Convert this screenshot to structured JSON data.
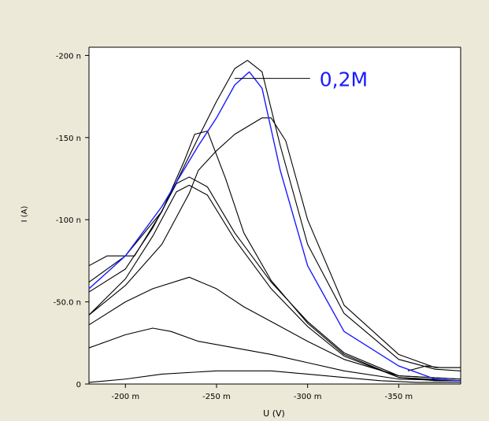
{
  "colors": {
    "background": "#ece9d8",
    "plot_background": "#ffffff",
    "axis": "#000000",
    "curve": "#000000",
    "highlight": "#1a1aff"
  },
  "chart_data": {
    "type": "line",
    "title": "",
    "xlabel": "U (V)",
    "ylabel": "I (A)",
    "xlim": [
      -0.18,
      -0.384
    ],
    "ylim": [
      -0.0,
      -2.05e-07
    ],
    "grid": false,
    "legend": "none",
    "x_ticks": [
      -0.2,
      -0.25,
      -0.3,
      -0.35
    ],
    "x_tick_labels": [
      "-200 m",
      "-250 m",
      "-300 m",
      "-350 m"
    ],
    "y_ticks": [
      0,
      -5e-08,
      -1e-07,
      -1.5e-07,
      -2e-07
    ],
    "y_tick_labels": [
      "0",
      "-50.0 n",
      "-100 n",
      "-150 n",
      "-200 n"
    ],
    "annotation": {
      "text": "0,2M",
      "target_series": "0,2M",
      "target_point": [
        -0.259,
        -1.87e-07
      ]
    },
    "series": [
      {
        "name": "0,2M",
        "x": [
          -0.18,
          -0.2,
          -0.22,
          -0.24,
          -0.25,
          -0.26,
          -0.268,
          -0.275,
          -0.285,
          -0.3,
          -0.32,
          -0.35,
          -0.37,
          -0.384
        ],
        "y": [
          -5.8e-08,
          -7.8e-08,
          -1.08e-07,
          -1.45e-07,
          -1.62e-07,
          -1.82e-07,
          -1.9e-07,
          -1.8e-07,
          -1.3e-07,
          -7.2e-08,
          -3.2e-08,
          -1.1e-08,
          -3e-09,
          -2e-09
        ]
      },
      {
        "x": [
          -0.18,
          -0.2,
          -0.22,
          -0.24,
          -0.25,
          -0.26,
          -0.267,
          -0.275,
          -0.285,
          -0.3,
          -0.32,
          -0.35,
          -0.37,
          -0.384
        ],
        "y": [
          -6.2e-08,
          -7.8e-08,
          -1.05e-07,
          -1.5e-07,
          -1.72e-07,
          -1.92e-07,
          -1.97e-07,
          -1.9e-07,
          -1.45e-07,
          -8.5e-08,
          -4.3e-08,
          -1.5e-08,
          -9e-09,
          -8e-09
        ]
      },
      {
        "x": [
          -0.18,
          -0.2,
          -0.22,
          -0.235,
          -0.24,
          -0.25,
          -0.26,
          -0.275,
          -0.28,
          -0.288,
          -0.3,
          -0.32,
          -0.35,
          -0.37,
          -0.384
        ],
        "y": [
          -4.2e-08,
          -6e-08,
          -8.5e-08,
          -1.16e-07,
          -1.3e-07,
          -1.42e-07,
          -1.52e-07,
          -1.62e-07,
          -1.62e-07,
          -1.48e-07,
          -1e-07,
          -4.8e-08,
          -1.8e-08,
          -1e-08,
          -1e-08
        ]
      },
      {
        "x": [
          -0.18,
          -0.19,
          -0.205,
          -0.22,
          -0.232,
          -0.238,
          -0.245,
          -0.255,
          -0.265,
          -0.28,
          -0.3,
          -0.32,
          -0.35,
          -0.37,
          -0.384
        ],
        "y": [
          -7.2e-08,
          -7.8e-08,
          -7.8e-08,
          -1.05e-07,
          -1.35e-07,
          -1.52e-07,
          -1.54e-07,
          -1.25e-07,
          -9.2e-08,
          -6.3e-08,
          -3.7e-08,
          -1.8e-08,
          -4e-09,
          -2e-09,
          -2e-09
        ]
      },
      {
        "x": [
          -0.18,
          -0.2,
          -0.215,
          -0.228,
          -0.235,
          -0.245,
          -0.26,
          -0.28,
          -0.3,
          -0.32,
          -0.35,
          -0.384
        ],
        "y": [
          -5.6e-08,
          -7e-08,
          -9.5e-08,
          -1.22e-07,
          -1.26e-07,
          -1.2e-07,
          -9.2e-08,
          -6.2e-08,
          -3.8e-08,
          -1.9e-08,
          -5e-09,
          -3e-09
        ]
      },
      {
        "x": [
          -0.18,
          -0.2,
          -0.215,
          -0.228,
          -0.235,
          -0.245,
          -0.26,
          -0.28,
          -0.3,
          -0.32,
          -0.35,
          -0.384
        ],
        "y": [
          -4.2e-08,
          -6.4e-08,
          -9e-08,
          -1.17e-07,
          -1.21e-07,
          -1.15e-07,
          -8.8e-08,
          -5.8e-08,
          -3.5e-08,
          -1.7e-08,
          -4e-09,
          -2e-09
        ]
      },
      {
        "x": [
          -0.18,
          -0.2,
          -0.215,
          -0.235,
          -0.25,
          -0.265,
          -0.28,
          -0.3,
          -0.32,
          -0.35,
          -0.384
        ],
        "y": [
          -3.6e-08,
          -5e-08,
          -5.8e-08,
          -6.5e-08,
          -5.8e-08,
          -4.7e-08,
          -3.8e-08,
          -2.6e-08,
          -1.5e-08,
          -5e-09,
          -3e-09
        ]
      },
      {
        "x": [
          -0.18,
          -0.19,
          -0.2,
          -0.215,
          -0.225,
          -0.24,
          -0.26,
          -0.28,
          -0.3,
          -0.32,
          -0.35,
          -0.384
        ],
        "y": [
          -2.2e-08,
          -2.6e-08,
          -3e-08,
          -3.4e-08,
          -3.2e-08,
          -2.6e-08,
          -2.2e-08,
          -1.8e-08,
          -1.3e-08,
          -8e-09,
          -3e-09,
          -2e-09
        ]
      },
      {
        "x": [
          -0.18,
          -0.2,
          -0.22,
          -0.25,
          -0.28,
          -0.3,
          -0.32,
          -0.34,
          -0.36,
          -0.384
        ],
        "y": [
          -1e-09,
          -3e-09,
          -6e-09,
          -8e-09,
          -8e-09,
          -6e-09,
          -4e-09,
          -2e-09,
          -1e-09,
          -1e-09
        ]
      },
      {
        "x": [
          -0.355,
          -0.365,
          -0.373,
          -0.384
        ],
        "y": [
          -8e-09,
          -1.1e-08,
          -1e-08,
          -1e-08
        ]
      }
    ]
  }
}
